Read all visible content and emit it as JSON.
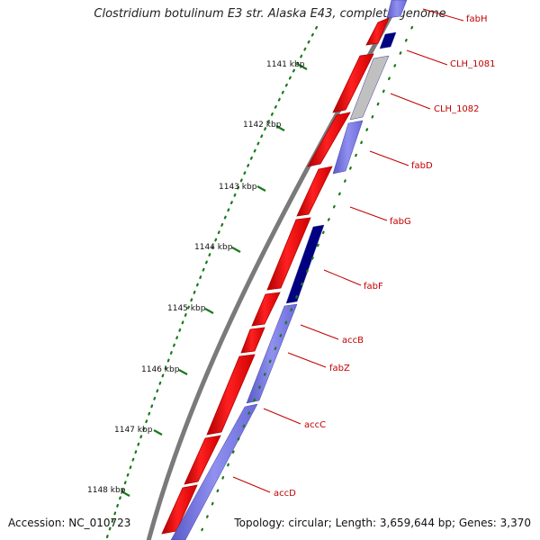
{
  "title": "Clostridium botulinum E3 str. Alaska E43, complete genome",
  "footer": {
    "accession": "Accession: NC_010723",
    "summary": "Topology: circular; Length: 3,659,644 bp; Genes: 3,370"
  },
  "ticks": [
    {
      "label": "1141 kbp",
      "value": 1141
    },
    {
      "label": "1142 kbp",
      "value": 1142
    },
    {
      "label": "1143 kbp",
      "value": 1143
    },
    {
      "label": "1144 kbp",
      "value": 1144
    },
    {
      "label": "1145 kbp",
      "value": 1145
    },
    {
      "label": "1146 kbp",
      "value": 1146
    },
    {
      "label": "1147 kbp",
      "value": 1147
    },
    {
      "label": "1148 kbp",
      "value": 1148
    }
  ],
  "genes": [
    {
      "name": "fabH"
    },
    {
      "name": "CLH_1081"
    },
    {
      "name": "CLH_1082"
    },
    {
      "name": "fabD"
    },
    {
      "name": "fabG"
    },
    {
      "name": "fabF"
    },
    {
      "name": "accB"
    },
    {
      "name": "fabZ"
    },
    {
      "name": "accC"
    },
    {
      "name": "accD"
    }
  ],
  "colors": {
    "cds": "#ff0000",
    "cds_dark": "#c00000",
    "cog_light": "#8080e0",
    "cog_dark": "#000080",
    "cog_grey": "#c0c0c0",
    "backbone": "#808080",
    "tick": "#1a7a1a",
    "label": "#c00000"
  }
}
